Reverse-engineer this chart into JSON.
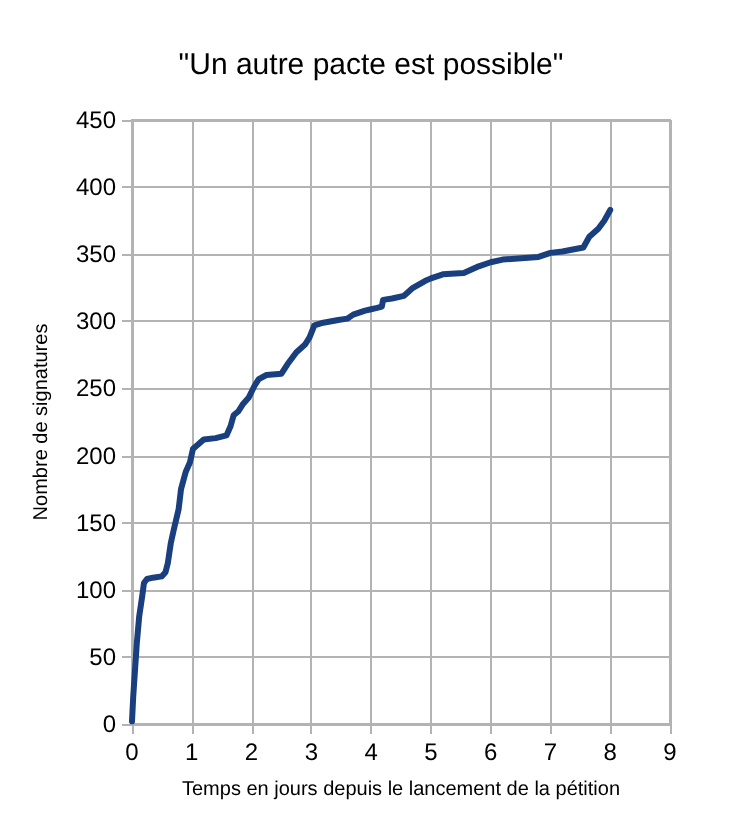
{
  "chart_data": {
    "type": "line",
    "title": "\"Un autre pacte est possible\"",
    "xlabel": "Temps en jours depuis le lancement de la pétition",
    "ylabel": "Nombre de signatures",
    "xlim": [
      0,
      9
    ],
    "xticks": [
      0,
      1,
      2,
      3,
      4,
      5,
      6,
      7,
      8,
      9
    ],
    "ylim": [
      0,
      450
    ],
    "yticks": [
      0,
      50,
      100,
      150,
      200,
      250,
      300,
      350,
      400,
      450
    ],
    "grid": true,
    "marker": "none",
    "line_style": "solid",
    "series": [
      {
        "color": "#1a3f7e",
        "x": [
          0,
          0.02,
          0.05,
          0.08,
          0.12,
          0.17,
          0.2,
          0.25,
          0.35,
          0.5,
          0.56,
          0.6,
          0.65,
          0.7,
          0.78,
          0.82,
          0.9,
          0.97,
          1.02,
          1.1,
          1.2,
          1.4,
          1.58,
          1.65,
          1.7,
          1.78,
          1.85,
          1.95,
          2.05,
          2.12,
          2.25,
          2.5,
          2.6,
          2.75,
          2.9,
          2.97,
          3.05,
          3.2,
          3.45,
          3.6,
          3.7,
          3.9,
          4.0,
          4.1,
          4.18,
          4.2,
          4.35,
          4.55,
          4.7,
          4.9,
          5.0,
          5.2,
          5.55,
          5.8,
          6.0,
          6.2,
          6.8,
          7.0,
          7.2,
          7.55,
          7.65,
          7.8,
          7.9,
          8.0
        ],
        "values": [
          2,
          20,
          40,
          60,
          80,
          95,
          105,
          108,
          109,
          110,
          113,
          120,
          135,
          145,
          160,
          175,
          188,
          195,
          205,
          208,
          212,
          213,
          215,
          222,
          230,
          233,
          238,
          243,
          252,
          257,
          260,
          261,
          268,
          277,
          283,
          288,
          297,
          299,
          301,
          302,
          305,
          308,
          309,
          310,
          311,
          316,
          317,
          319,
          325,
          330,
          332,
          335,
          336,
          341,
          344,
          346,
          348,
          351,
          352,
          355,
          363,
          369,
          375,
          383
        ]
      }
    ]
  }
}
